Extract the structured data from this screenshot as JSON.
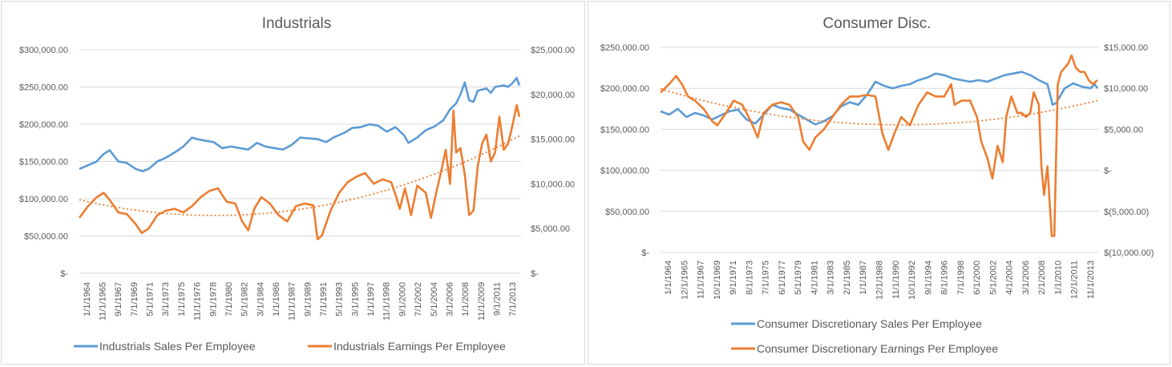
{
  "colors": {
    "sales": "#5b9bd5",
    "earnings": "#ed7d31",
    "grid": "#d9d9d9",
    "text": "#595959"
  },
  "chart_data": [
    {
      "type": "line",
      "title": "Industrials",
      "y_left_ticks": [
        "$300,000.00",
        "$250,000.00",
        "$200,000.00",
        "$150,000.00",
        "$100,000.00",
        "$50,000.00",
        "$-"
      ],
      "y_right_ticks": [
        "$25,000.00",
        "$20,000.00",
        "$15,000.00",
        "$10,000.00",
        "$5,000.00",
        "$-"
      ],
      "ylim_left": [
        0,
        300000
      ],
      "ylim_right": [
        0,
        25000
      ],
      "x_range": [
        1964.0,
        2015.0
      ],
      "x_ticks": [
        "1/1/1964",
        "11/1/1965",
        "9/1/1967",
        "7/1/1969",
        "5/1/1971",
        "3/1/1973",
        "1/1/1975",
        "11/1/1976",
        "9/1/1978",
        "7/1/1980",
        "5/1/1982",
        "3/1/1984",
        "1/1/1986",
        "11/1/1987",
        "9/1/1989",
        "7/1/1991",
        "5/1/1993",
        "3/1/1995",
        "1/1/1997",
        "11/1/1998",
        "9/1/2000",
        "7/1/2002",
        "5/1/2004",
        "3/1/2006",
        "1/1/2008",
        "11/1/2009",
        "9/1/2011",
        "7/1/2013"
      ],
      "legend": [
        "Industrials Sales Per Employee",
        "Industrials Earnings Per Employee"
      ],
      "series": [
        {
          "name": "Industrials Sales Per Employee",
          "axis": "left",
          "x": [
            1964.0,
            1965.0,
            1966.0,
            1966.8,
            1967.5,
            1968.5,
            1969.5,
            1970.5,
            1971.3,
            1972.0,
            1973.0,
            1974.0,
            1975.0,
            1976.0,
            1977.0,
            1977.6,
            1978.5,
            1979.5,
            1980.5,
            1981.5,
            1982.5,
            1983.5,
            1984.5,
            1985.5,
            1986.5,
            1987.5,
            1988.5,
            1989.5,
            1990.5,
            1991.5,
            1992.5,
            1993.5,
            1994.5,
            1995.5,
            1996.5,
            1997.5,
            1998.5,
            1999.5,
            2000.5,
            2001.5,
            2002.0,
            2003.0,
            2004.0,
            2005.0,
            2006.0,
            2006.8,
            2007.5,
            2008.0,
            2008.5,
            2009.0,
            2009.5,
            2010.0,
            2011.0,
            2011.5,
            2012.0,
            2013.0,
            2013.5,
            2014.0,
            2014.5,
            2014.8
          ],
          "values": [
            140000,
            145000,
            150000,
            160000,
            165000,
            150000,
            148000,
            140000,
            137000,
            140000,
            150000,
            155000,
            162000,
            170000,
            182000,
            180000,
            178000,
            176000,
            168000,
            170000,
            168000,
            166000,
            175000,
            170000,
            168000,
            166000,
            172000,
            182000,
            181000,
            180000,
            176000,
            183000,
            188000,
            195000,
            196000,
            200000,
            198000,
            190000,
            196000,
            185000,
            175000,
            182000,
            192000,
            197000,
            205000,
            220000,
            228000,
            240000,
            256000,
            232000,
            230000,
            245000,
            248000,
            242000,
            250000,
            252000,
            250000,
            255000,
            262000,
            252000
          ]
        },
        {
          "name": "Industrials Earnings Per Employee",
          "axis": "right",
          "x": [
            1964.0,
            1965.0,
            1966.0,
            1966.8,
            1967.5,
            1968.5,
            1969.5,
            1970.5,
            1971.2,
            1972.0,
            1973.0,
            1974.0,
            1975.0,
            1976.0,
            1977.0,
            1978.0,
            1979.0,
            1980.0,
            1981.0,
            1982.0,
            1982.8,
            1983.5,
            1984.2,
            1985.0,
            1986.0,
            1987.0,
            1988.0,
            1989.0,
            1990.0,
            1991.0,
            1991.5,
            1992.0,
            1993.0,
            1994.0,
            1995.0,
            1996.0,
            1997.0,
            1998.0,
            1999.0,
            2000.0,
            2000.5,
            2001.0,
            2001.6,
            2002.3,
            2003.0,
            2004.0,
            2004.6,
            2005.2,
            2005.8,
            2006.3,
            2006.8,
            2007.2,
            2007.5,
            2008.0,
            2008.5,
            2009.0,
            2009.5,
            2010.0,
            2010.5,
            2011.0,
            2011.5,
            2012.0,
            2012.5,
            2013.0,
            2013.5,
            2014.0,
            2014.5,
            2014.8
          ],
          "values": [
            6200,
            7500,
            8500,
            9000,
            8200,
            6800,
            6600,
            5500,
            4500,
            5000,
            6500,
            7000,
            7200,
            6800,
            7500,
            8500,
            9200,
            9500,
            8000,
            7800,
            5800,
            4800,
            7200,
            8500,
            7800,
            6500,
            5800,
            7500,
            7800,
            7600,
            3800,
            4200,
            7000,
            9000,
            10200,
            10800,
            11200,
            10000,
            10500,
            10200,
            8800,
            7200,
            9500,
            6500,
            9800,
            9000,
            6200,
            9000,
            11500,
            13800,
            10000,
            18200,
            13500,
            14000,
            11000,
            6500,
            7000,
            12000,
            14500,
            15500,
            12500,
            13500,
            17500,
            13800,
            14500,
            16500,
            18800,
            17500
          ]
        }
      ]
    },
    {
      "type": "line",
      "title": "Consumer Disc.",
      "y_left_ticks": [
        "$250,000.00",
        "$200,000.00",
        "$150,000.00",
        "$100,000.00",
        "$50,000.00",
        "$-"
      ],
      "y_right_ticks": [
        "$15,000.00",
        "$10,000.00",
        "$5,000.00",
        "$-",
        "$(5,000.00)",
        "$(10,000.00)"
      ],
      "ylim_left": [
        0,
        250000
      ],
      "ylim_right": [
        -10000,
        15000
      ],
      "x_range": [
        1964.0,
        2015.0
      ],
      "x_ticks": [
        "1/1/1964",
        "12/1/1965",
        "11/1/1967",
        "10/1/1969",
        "9/1/1971",
        "8/1/1973",
        "7/1/1975",
        "6/1/1977",
        "5/1/1979",
        "4/1/1981",
        "3/1/1983",
        "2/1/1985",
        "1/1/1987",
        "12/1/1988",
        "11/1/1990",
        "10/1/1992",
        "9/1/1994",
        "8/1/1996",
        "7/1/1998",
        "6/1/2000",
        "5/1/2002",
        "4/1/2004",
        "3/1/2006",
        "2/1/2008",
        "1/1/2010",
        "12/1/2011",
        "11/1/2013"
      ],
      "legend": [
        "Consumer Discretionary Sales Per Employee",
        "Consumer Discretionary Earnings Per Employee"
      ],
      "series": [
        {
          "name": "Consumer Discretionary Sales Per Employee",
          "axis": "left",
          "x": [
            1964.0,
            1965.0,
            1966.0,
            1967.0,
            1968.0,
            1969.0,
            1970.0,
            1971.0,
            1972.0,
            1973.0,
            1974.0,
            1975.0,
            1976.0,
            1977.0,
            1978.0,
            1979.0,
            1980.0,
            1981.0,
            1982.0,
            1983.0,
            1984.0,
            1985.0,
            1986.0,
            1987.0,
            1988.0,
            1989.0,
            1990.0,
            1991.0,
            1992.0,
            1993.0,
            1994.0,
            1995.0,
            1996.0,
            1997.0,
            1998.0,
            1999.0,
            2000.0,
            2001.0,
            2002.0,
            2003.0,
            2004.0,
            2005.0,
            2006.0,
            2007.0,
            2008.0,
            2009.0,
            2009.6,
            2010.0,
            2011.0,
            2012.0,
            2012.5,
            2013.0,
            2014.0,
            2014.5,
            2014.8
          ],
          "values": [
            172000,
            168000,
            175000,
            165000,
            170000,
            167000,
            162000,
            167000,
            172000,
            174000,
            162000,
            157000,
            168000,
            180000,
            176000,
            174000,
            168000,
            162000,
            156000,
            160000,
            166000,
            178000,
            183000,
            180000,
            192000,
            208000,
            203000,
            200000,
            203000,
            205000,
            210000,
            213000,
            218000,
            216000,
            212000,
            210000,
            208000,
            210000,
            208000,
            212000,
            216000,
            218000,
            220000,
            216000,
            210000,
            205000,
            180000,
            182000,
            200000,
            206000,
            204000,
            202000,
            200000,
            205000,
            200000
          ]
        },
        {
          "name": "Consumer Discretionary Earnings Per Employee",
          "axis": "right",
          "x": [
            1964.0,
            1965.0,
            1965.8,
            1966.5,
            1967.2,
            1968.0,
            1969.0,
            1970.0,
            1970.6,
            1971.5,
            1972.5,
            1973.5,
            1974.5,
            1975.3,
            1976.0,
            1977.0,
            1978.0,
            1979.0,
            1980.0,
            1980.6,
            1981.3,
            1982.0,
            1983.0,
            1984.0,
            1985.0,
            1986.0,
            1987.0,
            1988.0,
            1989.0,
            1989.8,
            1990.5,
            1991.2,
            1992.0,
            1993.0,
            1994.0,
            1995.0,
            1996.0,
            1997.0,
            1997.8,
            1998.2,
            1999.0,
            2000.0,
            2000.8,
            2001.3,
            2002.0,
            2002.6,
            2003.2,
            2003.8,
            2004.2,
            2004.8,
            2005.5,
            2006.0,
            2006.5,
            2007.0,
            2007.4,
            2008.0,
            2008.3,
            2008.6,
            2009.0,
            2009.5,
            2009.8,
            2010.2,
            2010.6,
            2011.0,
            2011.4,
            2011.8,
            2012.3,
            2012.8,
            2013.3,
            2013.8,
            2014.3,
            2014.8
          ],
          "values": [
            9500,
            10500,
            11500,
            10500,
            9000,
            8500,
            7500,
            6000,
            5500,
            6800,
            8500,
            8000,
            6000,
            4000,
            7000,
            8000,
            8300,
            8000,
            6500,
            3500,
            2500,
            4000,
            5000,
            6500,
            8000,
            9000,
            9000,
            9200,
            9000,
            4500,
            2500,
            4500,
            6500,
            5500,
            8000,
            9500,
            9000,
            9000,
            10500,
            8000,
            8500,
            8500,
            6500,
            3500,
            1500,
            -1000,
            3000,
            1000,
            6500,
            9000,
            7000,
            7000,
            6500,
            7000,
            9500,
            8000,
            500,
            -3000,
            500,
            -8000,
            -8000,
            10500,
            12000,
            12500,
            13000,
            14000,
            12500,
            12000,
            12000,
            11000,
            10500,
            11000
          ]
        }
      ]
    }
  ]
}
